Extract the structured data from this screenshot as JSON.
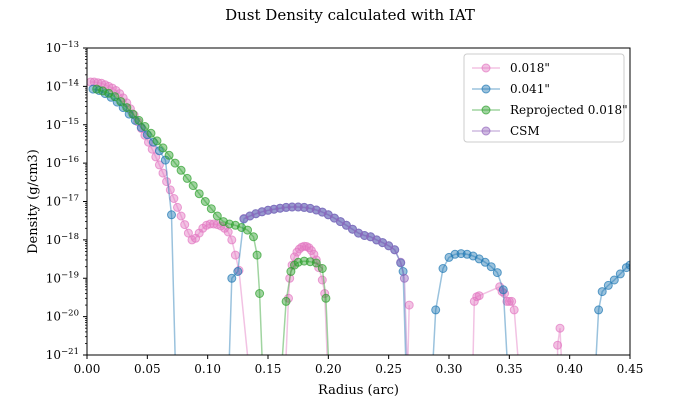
{
  "chart_data": {
    "type": "scatter",
    "title": "Dust Density calculated with IAT",
    "xlabel": "Radius (arc)",
    "ylabel": "Density (g/cm3)",
    "xlim": [
      0,
      0.45
    ],
    "ylim": [
      1e-21,
      1e-13
    ],
    "yscale": "log",
    "grid": false,
    "legend_position": "top-right",
    "x_ticks": [
      {
        "value": 0.0,
        "label": "0.00"
      },
      {
        "value": 0.05,
        "label": "0.05"
      },
      {
        "value": 0.1,
        "label": "0.10"
      },
      {
        "value": 0.15,
        "label": "0.15"
      },
      {
        "value": 0.2,
        "label": "0.20"
      },
      {
        "value": 0.25,
        "label": "0.25"
      },
      {
        "value": 0.3,
        "label": "0.30"
      },
      {
        "value": 0.35,
        "label": "0.35"
      },
      {
        "value": 0.4,
        "label": "0.40"
      },
      {
        "value": 0.45,
        "label": "0.45"
      }
    ],
    "y_ticks": [
      {
        "value": 1e-21,
        "base": "10",
        "exp": "−21"
      },
      {
        "value": 1e-20,
        "base": "10",
        "exp": "−20"
      },
      {
        "value": 1e-19,
        "base": "10",
        "exp": "−19"
      },
      {
        "value": 1e-18,
        "base": "10",
        "exp": "−18"
      },
      {
        "value": 1e-17,
        "base": "10",
        "exp": "−17"
      },
      {
        "value": 1e-16,
        "base": "10",
        "exp": "−16"
      },
      {
        "value": 1e-15,
        "base": "10",
        "exp": "−15"
      },
      {
        "value": 1e-14,
        "base": "10",
        "exp": "−14"
      },
      {
        "value": 1e-13,
        "base": "10",
        "exp": "−13"
      }
    ],
    "series": [
      {
        "name": "0.018\"",
        "color": "#e377c2",
        "segments": [
          [
            [
              0.003,
              1.3e-14
            ],
            [
              0.006,
              1.3e-14
            ],
            [
              0.009,
              1.25e-14
            ],
            [
              0.012,
              1.2e-14
            ],
            [
              0.015,
              1.1e-14
            ],
            [
              0.018,
              1e-14
            ],
            [
              0.021,
              9e-15
            ],
            [
              0.024,
              7.8e-15
            ],
            [
              0.027,
              6.5e-15
            ],
            [
              0.03,
              5e-15
            ],
            [
              0.033,
              3.7e-15
            ],
            [
              0.036,
              2.6e-15
            ],
            [
              0.039,
              1.8e-15
            ],
            [
              0.042,
              1.2e-15
            ],
            [
              0.045,
              8e-16
            ],
            [
              0.048,
              5.3e-16
            ],
            [
              0.051,
              3.5e-16
            ],
            [
              0.054,
              2.3e-16
            ],
            [
              0.057,
              1.45e-16
            ],
            [
              0.06,
              9e-17
            ],
            [
              0.063,
              5.5e-17
            ],
            [
              0.066,
              3.3e-17
            ],
            [
              0.069,
              2e-17
            ],
            [
              0.072,
              1.2e-17
            ],
            [
              0.075,
              7e-18
            ],
            [
              0.078,
              4.2e-18
            ],
            [
              0.081,
              2.5e-18
            ],
            [
              0.084,
              1.5e-18
            ],
            [
              0.087,
              1e-18
            ],
            [
              0.09,
              1.1e-18
            ],
            [
              0.093,
              1.5e-18
            ],
            [
              0.096,
              2e-18
            ],
            [
              0.099,
              2.4e-18
            ],
            [
              0.102,
              2.6e-18
            ],
            [
              0.105,
              2.6e-18
            ],
            [
              0.108,
              2.5e-18
            ],
            [
              0.111,
              2.3e-18
            ],
            [
              0.114,
              2e-18
            ],
            [
              0.117,
              1.6e-18
            ],
            [
              0.12,
              1e-18
            ],
            [
              0.123,
              4e-19
            ],
            [
              0.126,
              1.6e-19
            ],
            [
              0.133,
              1e-21
            ]
          ],
          [
            [
              0.165,
              1e-21
            ],
            [
              0.167,
              3e-20
            ],
            [
              0.168,
              1e-19
            ],
            [
              0.17,
              2.2e-19
            ],
            [
              0.172,
              3.6e-19
            ],
            [
              0.174,
              4.8e-19
            ],
            [
              0.176,
              5.8e-19
            ],
            [
              0.178,
              6.5e-19
            ],
            [
              0.18,
              6.8e-19
            ],
            [
              0.182,
              6.7e-19
            ],
            [
              0.184,
              6.2e-19
            ],
            [
              0.186,
              5.3e-19
            ],
            [
              0.188,
              4.2e-19
            ],
            [
              0.19,
              3e-19
            ],
            [
              0.192,
              1.9e-19
            ],
            [
              0.195,
              9e-20
            ],
            [
              0.197,
              4e-20
            ],
            [
              0.199,
              1e-21
            ]
          ],
          [
            [
              0.266,
              1e-21
            ],
            [
              0.267,
              2e-20
            ]
          ],
          [
            [
              0.32,
              1e-21
            ],
            [
              0.321,
              2.5e-20
            ],
            [
              0.323,
              3.3e-20
            ],
            [
              0.325,
              3.5e-20
            ],
            [
              0.342,
              6e-20
            ],
            [
              0.344,
              4.5e-20
            ],
            [
              0.346,
              4e-20
            ],
            [
              0.348,
              2.5e-20
            ],
            [
              0.35,
              2.5e-20
            ],
            [
              0.352,
              2.5e-20
            ],
            [
              0.354,
              1.5e-20
            ],
            [
              0.357,
              1e-21
            ]
          ],
          [
            [
              0.39,
              1e-21
            ],
            [
              0.39,
              1.8e-21
            ],
            [
              0.392,
              5e-21
            ],
            [
              0.393,
              1e-21
            ]
          ]
        ]
      },
      {
        "name": "0.041\"",
        "color": "#1f77b4",
        "segments": [
          [
            [
              0.005,
              8.5e-15
            ],
            [
              0.01,
              7.8e-15
            ],
            [
              0.015,
              6.5e-15
            ],
            [
              0.02,
              5.2e-15
            ],
            [
              0.025,
              3.9e-15
            ],
            [
              0.03,
              2.8e-15
            ],
            [
              0.035,
              1.9e-15
            ],
            [
              0.04,
              1.3e-15
            ],
            [
              0.045,
              8.5e-16
            ],
            [
              0.05,
              5.5e-16
            ],
            [
              0.055,
              3.5e-16
            ],
            [
              0.06,
              2.1e-16
            ],
            [
              0.065,
              1.2e-16
            ],
            [
              0.07,
              4.5e-18
            ],
            [
              0.073,
              1e-21
            ]
          ],
          [
            [
              0.118,
              1e-21
            ],
            [
              0.12,
              1e-19
            ],
            [
              0.125,
              1.5e-19
            ],
            [
              0.13,
              3.5e-18
            ],
            [
              0.135,
              4.2e-18
            ],
            [
              0.14,
              4.8e-18
            ],
            [
              0.145,
              5.4e-18
            ],
            [
              0.15,
              5.9e-18
            ],
            [
              0.155,
              6.3e-18
            ],
            [
              0.16,
              6.7e-18
            ],
            [
              0.165,
              7e-18
            ],
            [
              0.17,
              7.2e-18
            ],
            [
              0.175,
              7.2e-18
            ],
            [
              0.18,
              7e-18
            ],
            [
              0.185,
              6.6e-18
            ],
            [
              0.19,
              6e-18
            ],
            [
              0.195,
              5.3e-18
            ],
            [
              0.2,
              4.5e-18
            ],
            [
              0.205,
              3.7e-18
            ],
            [
              0.21,
              3e-18
            ],
            [
              0.215,
              2.4e-18
            ],
            [
              0.22,
              1.9e-18
            ],
            [
              0.225,
              1.5e-18
            ],
            [
              0.23,
              1.3e-18
            ],
            [
              0.235,
              1.2e-18
            ],
            [
              0.24,
              1e-18
            ],
            [
              0.245,
              8.5e-19
            ],
            [
              0.25,
              7e-19
            ],
            [
              0.255,
              5.5e-19
            ],
            [
              0.26,
              2.5e-19
            ],
            [
              0.262,
              1.5e-19
            ],
            [
              0.264,
              1e-21
            ]
          ],
          [
            [
              0.287,
              1e-21
            ],
            [
              0.289,
              1.5e-20
            ],
            [
              0.295,
              1.8e-19
            ],
            [
              0.3,
              3.5e-19
            ],
            [
              0.305,
              4.2e-19
            ],
            [
              0.31,
              4.4e-19
            ],
            [
              0.315,
              4.2e-19
            ],
            [
              0.32,
              3.8e-19
            ],
            [
              0.325,
              3.2e-19
            ],
            [
              0.33,
              2.6e-19
            ],
            [
              0.335,
              2e-19
            ],
            [
              0.34,
              1.4e-19
            ],
            [
              0.345,
              5e-20
            ],
            [
              0.348,
              1e-21
            ]
          ],
          [
            [
              0.422,
              1e-21
            ],
            [
              0.424,
              1.5e-20
            ],
            [
              0.427,
              4.5e-20
            ],
            [
              0.432,
              6.5e-20
            ],
            [
              0.437,
              9e-20
            ],
            [
              0.442,
              1.3e-19
            ],
            [
              0.447,
              1.9e-19
            ],
            [
              0.45,
              2.2e-19
            ]
          ]
        ]
      },
      {
        "name": "Reprojected 0.018\"",
        "color": "#2ca02c",
        "segments": [
          [
            [
              0.008,
              8.5e-15
            ],
            [
              0.013,
              7.6e-15
            ],
            [
              0.018,
              6.6e-15
            ],
            [
              0.023,
              5.4e-15
            ],
            [
              0.028,
              4e-15
            ],
            [
              0.033,
              2.8e-15
            ],
            [
              0.038,
              1.9e-15
            ],
            [
              0.043,
              1.3e-15
            ],
            [
              0.048,
              9e-16
            ],
            [
              0.053,
              6e-16
            ],
            [
              0.058,
              3.8e-16
            ],
            [
              0.063,
              2.5e-16
            ],
            [
              0.068,
              1.6e-16
            ],
            [
              0.073,
              1e-16
            ],
            [
              0.078,
              6.5e-17
            ],
            [
              0.083,
              4e-17
            ],
            [
              0.088,
              2.6e-17
            ],
            [
              0.093,
              1.6e-17
            ],
            [
              0.098,
              1e-17
            ],
            [
              0.103,
              6.5e-18
            ],
            [
              0.108,
              4.2e-18
            ],
            [
              0.113,
              3e-18
            ],
            [
              0.118,
              2.6e-18
            ],
            [
              0.123,
              2.4e-18
            ],
            [
              0.128,
              2.1e-18
            ],
            [
              0.133,
              1.8e-18
            ],
            [
              0.138,
              1.2e-18
            ],
            [
              0.141,
              4e-19
            ],
            [
              0.143,
              4e-20
            ],
            [
              0.145,
              1e-21
            ]
          ],
          [
            [
              0.162,
              1e-21
            ],
            [
              0.165,
              2.5e-20
            ],
            [
              0.169,
              1.5e-19
            ],
            [
              0.172,
              2.2e-19
            ],
            [
              0.175,
              2.6e-19
            ],
            [
              0.18,
              2.8e-19
            ],
            [
              0.185,
              2.7e-19
            ],
            [
              0.19,
              2.5e-19
            ],
            [
              0.195,
              1.8e-19
            ],
            [
              0.198,
              3e-20
            ],
            [
              0.2,
              1e-21
            ]
          ]
        ]
      },
      {
        "name": "CSM",
        "color": "#9467bd",
        "segments": [
          [
            [
              0.13,
              3.6e-18
            ],
            [
              0.135,
              4.2e-18
            ],
            [
              0.14,
              4.8e-18
            ],
            [
              0.145,
              5.4e-18
            ],
            [
              0.15,
              5.9e-18
            ],
            [
              0.155,
              6.3e-18
            ],
            [
              0.16,
              6.7e-18
            ],
            [
              0.165,
              7e-18
            ],
            [
              0.17,
              7.2e-18
            ],
            [
              0.175,
              7.2e-18
            ],
            [
              0.18,
              7e-18
            ],
            [
              0.185,
              6.6e-18
            ],
            [
              0.19,
              6e-18
            ],
            [
              0.195,
              5.3e-18
            ],
            [
              0.2,
              4.5e-18
            ],
            [
              0.205,
              3.7e-18
            ],
            [
              0.21,
              3e-18
            ],
            [
              0.215,
              2.4e-18
            ],
            [
              0.22,
              1.9e-18
            ],
            [
              0.225,
              1.5e-18
            ],
            [
              0.23,
              1.3e-18
            ],
            [
              0.235,
              1.2e-18
            ],
            [
              0.24,
              1e-18
            ],
            [
              0.245,
              8.5e-19
            ],
            [
              0.25,
              7e-19
            ],
            [
              0.255,
              5.5e-19
            ],
            [
              0.26,
              2.6e-19
            ],
            [
              0.263,
              1e-19
            ],
            [
              0.265,
              1e-21
            ]
          ]
        ]
      }
    ]
  }
}
